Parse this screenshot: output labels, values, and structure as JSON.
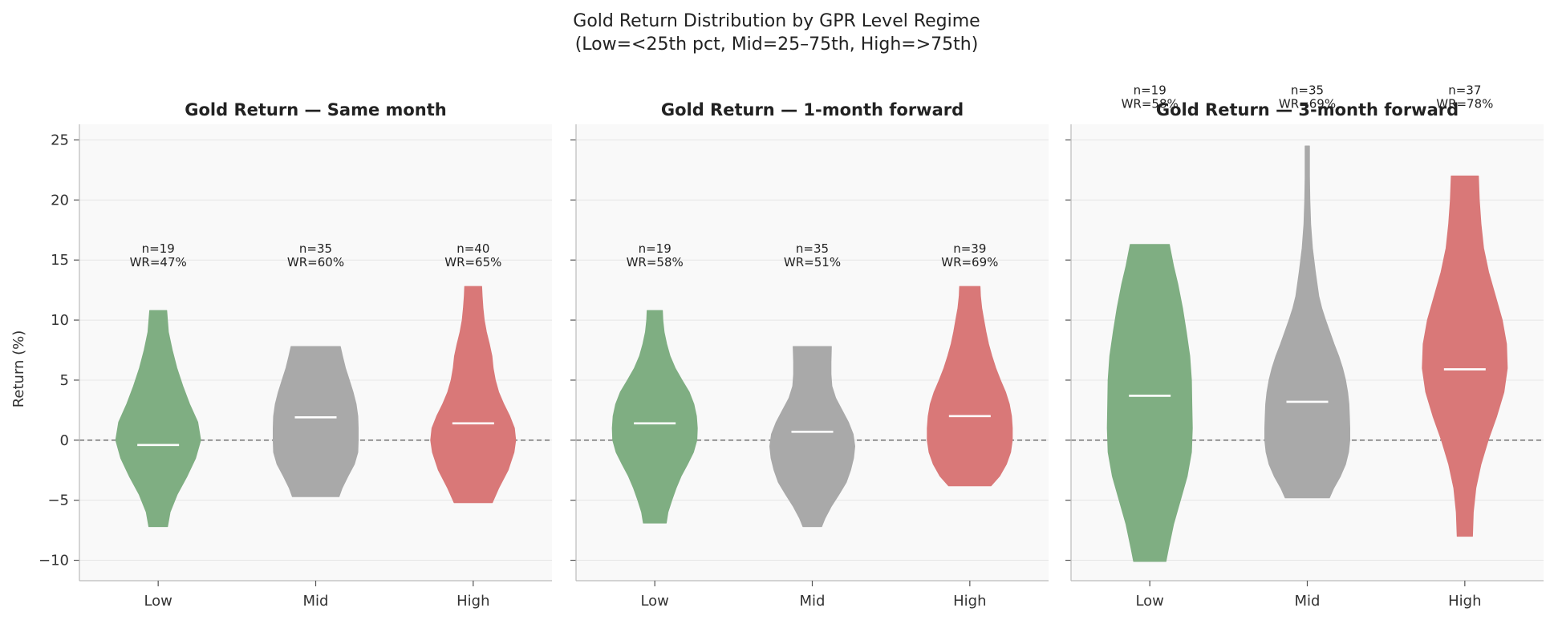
{
  "chart_data": {
    "type": "violin",
    "suptitle_lines": [
      "Gold Return Distribution by GPR Level Regime",
      "(Low=<25th pct, Mid=25–75th, High=>75th)"
    ],
    "ylabel": "Return (%)",
    "ylim": [
      -11.7,
      26.3
    ],
    "yticks": [
      -10,
      -5,
      0,
      5,
      10,
      15,
      20,
      25
    ],
    "ytick_labels": [
      "−10",
      "−5",
      "0",
      "5",
      "10",
      "15",
      "20",
      "25"
    ],
    "grid": true,
    "reference_line": 0,
    "categories": [
      "Low",
      "Mid",
      "High"
    ],
    "colors": {
      "Low": "#7fae82",
      "Mid": "#a9a9a9",
      "High": "#d97878",
      "median": "#ffffff",
      "panel_bg": "#f9f9f9",
      "zero_line": "#666666"
    },
    "panels": [
      {
        "title": "Gold Return — Same month",
        "annotation_y": 15.2,
        "groups": [
          {
            "category": "Low",
            "n_label": "n=19",
            "wr_label": "WR=47%",
            "min": -7.2,
            "max": 10.8,
            "median": -0.4,
            "profile": [
              [
                -7.2,
                0.22
              ],
              [
                -6,
                0.28
              ],
              [
                -4.5,
                0.45
              ],
              [
                -3,
                0.68
              ],
              [
                -1.5,
                0.88
              ],
              [
                0,
                1.0
              ],
              [
                1.5,
                0.93
              ],
              [
                3,
                0.74
              ],
              [
                4.5,
                0.58
              ],
              [
                6,
                0.44
              ],
              [
                7.5,
                0.33
              ],
              [
                9,
                0.24
              ],
              [
                10.8,
                0.2
              ]
            ]
          },
          {
            "category": "Mid",
            "n_label": "n=35",
            "wr_label": "WR=60%",
            "min": -4.7,
            "max": 7.8,
            "median": 1.9,
            "profile": [
              [
                -4.7,
                0.55
              ],
              [
                -4,
                0.62
              ],
              [
                -3,
                0.76
              ],
              [
                -2,
                0.91
              ],
              [
                -1,
                0.99
              ],
              [
                0,
                1.0
              ],
              [
                1,
                1.0
              ],
              [
                2,
                0.99
              ],
              [
                3,
                0.95
              ],
              [
                4,
                0.88
              ],
              [
                5,
                0.79
              ],
              [
                6,
                0.7
              ],
              [
                7,
                0.63
              ],
              [
                7.8,
                0.58
              ]
            ]
          },
          {
            "category": "High",
            "n_label": "n=40",
            "wr_label": "WR=65%",
            "min": -5.2,
            "max": 12.8,
            "median": 1.4,
            "profile": [
              [
                -5.2,
                0.45
              ],
              [
                -4,
                0.6
              ],
              [
                -2.5,
                0.82
              ],
              [
                -1,
                0.96
              ],
              [
                0,
                1.0
              ],
              [
                1,
                0.97
              ],
              [
                2,
                0.86
              ],
              [
                3,
                0.72
              ],
              [
                4,
                0.6
              ],
              [
                5,
                0.52
              ],
              [
                6,
                0.47
              ],
              [
                7,
                0.44
              ],
              [
                8,
                0.38
              ],
              [
                9,
                0.31
              ],
              [
                10,
                0.26
              ],
              [
                11,
                0.23
              ],
              [
                12,
                0.21
              ],
              [
                12.8,
                0.2
              ]
            ]
          }
        ]
      },
      {
        "title": "Gold Return — 1-month forward",
        "annotation_y": 15.2,
        "groups": [
          {
            "category": "Low",
            "n_label": "n=19",
            "wr_label": "WR=58%",
            "min": -6.9,
            "max": 10.8,
            "median": 1.4,
            "profile": [
              [
                -6.9,
                0.27
              ],
              [
                -6,
                0.31
              ],
              [
                -5,
                0.4
              ],
              [
                -4,
                0.5
              ],
              [
                -3,
                0.62
              ],
              [
                -2,
                0.77
              ],
              [
                -1,
                0.91
              ],
              [
                0,
                0.99
              ],
              [
                1,
                1.0
              ],
              [
                2,
                0.98
              ],
              [
                3,
                0.92
              ],
              [
                4,
                0.81
              ],
              [
                5,
                0.64
              ],
              [
                6,
                0.48
              ],
              [
                7,
                0.36
              ],
              [
                8,
                0.28
              ],
              [
                9,
                0.22
              ],
              [
                10,
                0.19
              ],
              [
                10.8,
                0.18
              ]
            ]
          },
          {
            "category": "Mid",
            "n_label": "n=35",
            "wr_label": "WR=51%",
            "min": -7.2,
            "max": 7.8,
            "median": 0.7,
            "profile": [
              [
                -7.2,
                0.22
              ],
              [
                -6.5,
                0.3
              ],
              [
                -5.5,
                0.45
              ],
              [
                -4.5,
                0.63
              ],
              [
                -3.5,
                0.8
              ],
              [
                -2.5,
                0.9
              ],
              [
                -1.5,
                0.97
              ],
              [
                -0.5,
                1.0
              ],
              [
                0.5,
                0.96
              ],
              [
                1.5,
                0.85
              ],
              [
                2.5,
                0.7
              ],
              [
                3.5,
                0.55
              ],
              [
                4.5,
                0.46
              ],
              [
                5.5,
                0.44
              ],
              [
                6.5,
                0.44
              ],
              [
                7.8,
                0.45
              ]
            ]
          },
          {
            "category": "High",
            "n_label": "n=39",
            "wr_label": "WR=69%",
            "min": -3.8,
            "max": 12.8,
            "median": 2.0,
            "profile": [
              [
                -3.8,
                0.5
              ],
              [
                -3,
                0.7
              ],
              [
                -2,
                0.86
              ],
              [
                -1,
                0.96
              ],
              [
                0,
                1.0
              ],
              [
                1,
                1.0
              ],
              [
                2,
                0.98
              ],
              [
                3,
                0.93
              ],
              [
                4,
                0.84
              ],
              [
                5,
                0.72
              ],
              [
                6,
                0.61
              ],
              [
                7,
                0.52
              ],
              [
                8,
                0.44
              ],
              [
                9,
                0.38
              ],
              [
                10,
                0.33
              ],
              [
                11,
                0.28
              ],
              [
                12,
                0.25
              ],
              [
                12.8,
                0.24
              ]
            ]
          }
        ]
      },
      {
        "title": "Gold Return — 3-month forward",
        "annotation_y": 28.4,
        "groups": [
          {
            "category": "Low",
            "n_label": "n=19",
            "wr_label": "WR=58%",
            "min": -10.1,
            "max": 16.3,
            "median": 3.7,
            "profile": [
              [
                -10.1,
                0.38
              ],
              [
                -9,
                0.44
              ],
              [
                -7,
                0.56
              ],
              [
                -5,
                0.72
              ],
              [
                -3,
                0.88
              ],
              [
                -1,
                0.98
              ],
              [
                1,
                1.0
              ],
              [
                3,
                0.99
              ],
              [
                5,
                0.98
              ],
              [
                7,
                0.94
              ],
              [
                9,
                0.86
              ],
              [
                11,
                0.77
              ],
              [
                13,
                0.66
              ],
              [
                14.5,
                0.56
              ],
              [
                16.3,
                0.46
              ]
            ]
          },
          {
            "category": "Mid",
            "n_label": "n=35",
            "wr_label": "WR=69%",
            "min": -4.8,
            "max": 24.5,
            "median": 3.2,
            "profile": [
              [
                -4.8,
                0.52
              ],
              [
                -4,
                0.62
              ],
              [
                -3,
                0.78
              ],
              [
                -2,
                0.9
              ],
              [
                -1,
                0.97
              ],
              [
                0,
                1.0
              ],
              [
                1,
                1.0
              ],
              [
                2,
                0.99
              ],
              [
                3,
                0.98
              ],
              [
                4,
                0.95
              ],
              [
                5,
                0.9
              ],
              [
                6,
                0.83
              ],
              [
                7,
                0.74
              ],
              [
                8,
                0.63
              ],
              [
                9,
                0.53
              ],
              [
                10,
                0.43
              ],
              [
                11,
                0.34
              ],
              [
                12,
                0.27
              ],
              [
                14,
                0.19
              ],
              [
                16,
                0.12
              ],
              [
                18,
                0.08
              ],
              [
                20,
                0.06
              ],
              [
                22,
                0.05
              ],
              [
                24.5,
                0.05
              ]
            ]
          },
          {
            "category": "High",
            "n_label": "n=37",
            "wr_label": "WR=78%",
            "min": -8.0,
            "max": 22.0,
            "median": 5.9,
            "profile": [
              [
                -8,
                0.18
              ],
              [
                -6,
                0.2
              ],
              [
                -4,
                0.26
              ],
              [
                -2,
                0.38
              ],
              [
                0,
                0.55
              ],
              [
                2,
                0.75
              ],
              [
                4,
                0.92
              ],
              [
                6,
                1.0
              ],
              [
                8,
                0.98
              ],
              [
                10,
                0.88
              ],
              [
                12,
                0.72
              ],
              [
                14,
                0.56
              ],
              [
                16,
                0.44
              ],
              [
                18,
                0.38
              ],
              [
                20,
                0.34
              ],
              [
                22,
                0.32
              ]
            ]
          }
        ]
      }
    ]
  }
}
